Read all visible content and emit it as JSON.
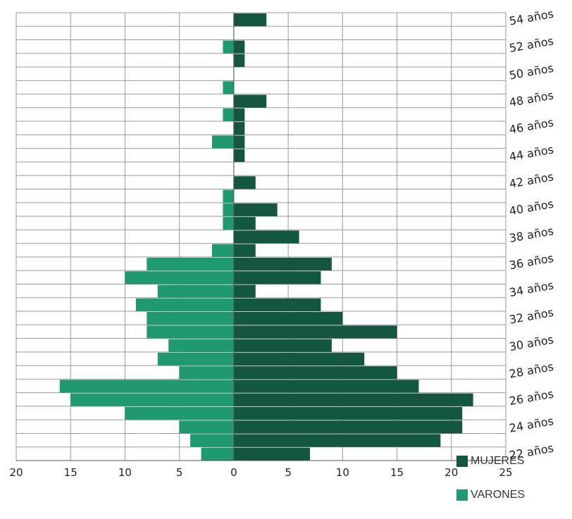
{
  "chart_data": {
    "type": "bar",
    "orientation": "horizontal",
    "title": "",
    "xlabel": "",
    "ylabel": "",
    "xlim": [
      -20,
      25
    ],
    "xticks": [
      "20",
      "15",
      "10",
      "5",
      "0",
      "5",
      "10",
      "15",
      "20",
      "25"
    ],
    "grid": true,
    "legend_placement": "bottom-right",
    "categories": [
      "22 años",
      "23 años",
      "24 años",
      "25 años",
      "26 años",
      "27 años",
      "28 años",
      "29 años",
      "30 años",
      "31 años",
      "32 años",
      "33 años",
      "34 años",
      "35 años",
      "36 años",
      "37 años",
      "38 años",
      "39 años",
      "40 años",
      "41 años",
      "42 años",
      "43 años",
      "44 años",
      "45 años",
      "46 años",
      "47 años",
      "48 años",
      "49 años",
      "50 años",
      "51 años",
      "52 años",
      "53 años",
      "54 años"
    ],
    "category_labels_shown": [
      "22 años",
      "24 años",
      "26 años",
      "28 años",
      "30 años",
      "32 años",
      "34 años",
      "36 años",
      "38 años",
      "40 años",
      "42 años",
      "44 años",
      "46 años",
      "48 años",
      "50 años",
      "52 años",
      "54 años"
    ],
    "series": [
      {
        "name": "MUJERES",
        "color": "#135740",
        "values": [
          7,
          19,
          21,
          21,
          22,
          17,
          15,
          12,
          9,
          15,
          10,
          8,
          2,
          8,
          9,
          2,
          6,
          2,
          4,
          0,
          2,
          0,
          1,
          1,
          1,
          1,
          3,
          0,
          0,
          1,
          1,
          0,
          3
        ]
      },
      {
        "name": "VARONES",
        "color": "#1f9970",
        "values": [
          3,
          4,
          5,
          10,
          15,
          16,
          5,
          7,
          6,
          8,
          8,
          9,
          7,
          10,
          8,
          2,
          0,
          1,
          1,
          1,
          0,
          0,
          0,
          2,
          0,
          1,
          0,
          1,
          0,
          0,
          1,
          0,
          0
        ]
      }
    ]
  },
  "legend": {
    "mujeres": "MUJERES",
    "varones": "VARONES"
  }
}
